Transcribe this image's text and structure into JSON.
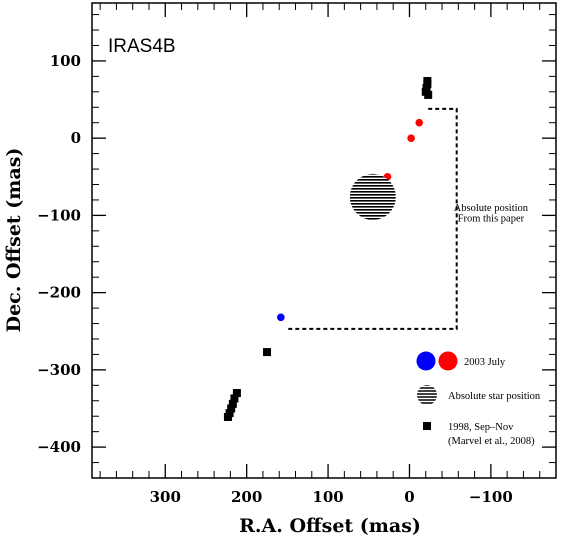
{
  "chart_data": {
    "type": "scatter",
    "panel_label": "IRAS4B",
    "xlabel": "R.A. Offset (mas)",
    "ylabel": "Dec. Offset (mas)",
    "xlim": [
      390,
      -180
    ],
    "ylim": [
      -440,
      175
    ],
    "x_ticks": [
      300,
      200,
      100,
      0,
      -100
    ],
    "x_tick_labels": [
      "300",
      "200",
      "100",
      "0",
      "−100"
    ],
    "y_ticks": [
      100,
      0,
      -100,
      -200,
      -300,
      -400
    ],
    "y_tick_labels": [
      "100",
      "0",
      "−100",
      "−200",
      "−300",
      "−400"
    ],
    "series": [
      {
        "name": "1998, Sep–Nov (Marvel et al., 2008)",
        "marker": "square",
        "color": "#000000",
        "points": [
          {
            "x": -22,
            "y": 74
          },
          {
            "x": -22,
            "y": 70
          },
          {
            "x": -21,
            "y": 65
          },
          {
            "x": -20,
            "y": 60
          },
          {
            "x": -23,
            "y": 56
          },
          {
            "x": 175,
            "y": -277
          },
          {
            "x": 212,
            "y": -330
          },
          {
            "x": 215,
            "y": -337
          },
          {
            "x": 217,
            "y": -344
          },
          {
            "x": 219,
            "y": -350
          },
          {
            "x": 221,
            "y": -356
          },
          {
            "x": 223,
            "y": -361
          }
        ]
      },
      {
        "name": "2003 July",
        "marker": "circle",
        "color": "#ff0000",
        "points": [
          {
            "x": -12,
            "y": 20
          },
          {
            "x": -2,
            "y": 0
          },
          {
            "x": 27,
            "y": -50
          }
        ]
      },
      {
        "name": "2003 July",
        "marker": "circle",
        "color": "#0000ff",
        "points": [
          {
            "x": 158,
            "y": -232
          }
        ]
      },
      {
        "name": "Absolute star position",
        "marker": "hatched-circle",
        "color": "#000000",
        "points": [
          {
            "x": 45,
            "y": -76
          }
        ]
      }
    ],
    "annotations": [
      {
        "text": "Absolute position",
        "x": -100,
        "y": -94
      },
      {
        "text": "From this paper",
        "x": -100,
        "y": -108
      }
    ],
    "legend": {
      "placement": "bottom-right",
      "entries": [
        {
          "marker": "two-circles",
          "colors": [
            "#0000ff",
            "#ff0000"
          ],
          "label": "2003 July"
        },
        {
          "marker": "hatched-circle",
          "label": "Absolute star position"
        },
        {
          "marker": "square",
          "label": "1998, Sep–Nov",
          "label_line2": "(Marvel et al., 2008)"
        }
      ]
    },
    "dashed_bracket": [
      {
        "x": -23,
        "y": 38
      },
      {
        "x": -58,
        "y": 38
      },
      {
        "x": -58,
        "y": -247
      },
      {
        "x": 150,
        "y": -247
      }
    ],
    "grid": false
  }
}
